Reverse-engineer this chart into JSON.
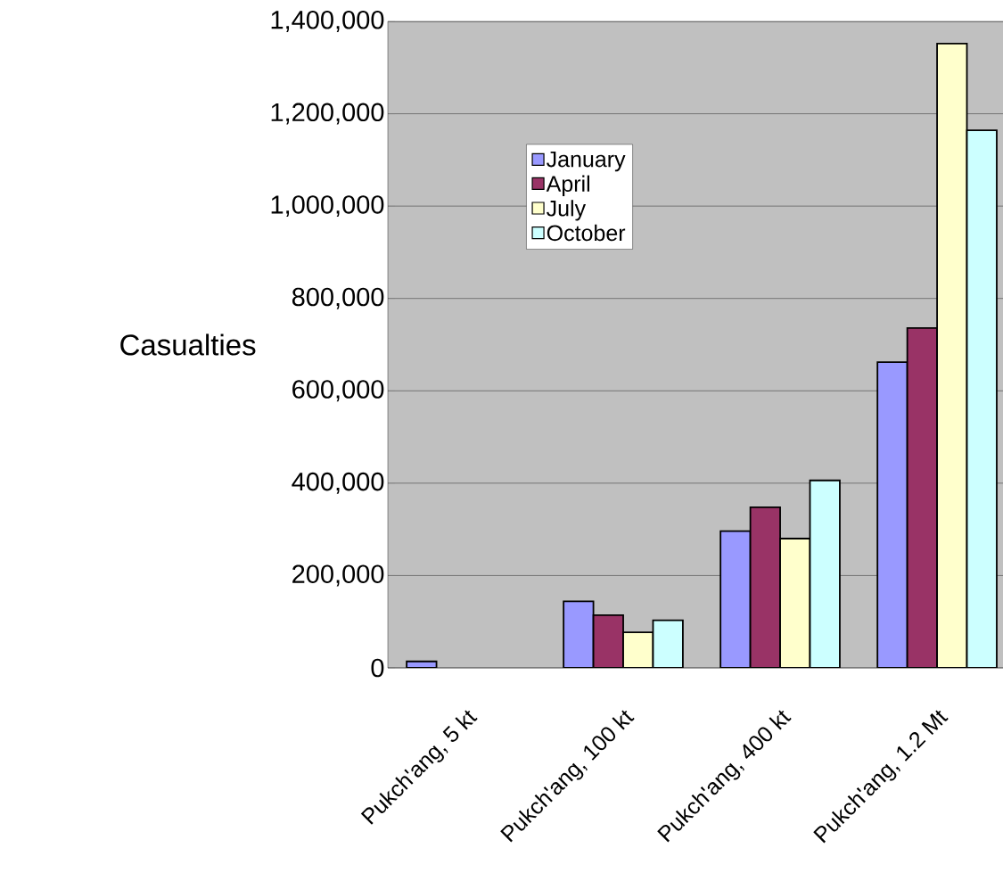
{
  "chart_data": {
    "type": "bar",
    "ylabel": "Casualties",
    "categories": [
      "Pukch'ang, 5 kt",
      "Pukch'ang, 100 kt",
      "Pukch'ang, 400 kt",
      "Pukch'ang, 1.2 Mt"
    ],
    "series": [
      {
        "name": "January",
        "color": "#9999ff",
        "values": [
          14000,
          144000,
          296000,
          662000
        ]
      },
      {
        "name": "April",
        "color": "#993366",
        "values": [
          null,
          114000,
          348000,
          736000
        ]
      },
      {
        "name": "July",
        "color": "#ffffcc",
        "values": [
          null,
          77000,
          280000,
          1352000
        ]
      },
      {
        "name": "October",
        "color": "#ccffff",
        "values": [
          null,
          103000,
          406000,
          1164000
        ]
      }
    ],
    "ylim": [
      0,
      1400000
    ],
    "yticks": [
      0,
      {
        "value": 200000,
        "label": "200,000"
      },
      {
        "value": 400000,
        "label": "400,000"
      },
      {
        "value": 600000,
        "label": "600,000"
      },
      {
        "value": 800000,
        "label": "800,000"
      },
      {
        "value": 1000000,
        "label": "1,000,000"
      },
      {
        "value": 1200000,
        "label": "1,200,000"
      },
      {
        "value": 1400000,
        "label": "1,400,000"
      }
    ],
    "grid": "y",
    "legend": "top left"
  }
}
